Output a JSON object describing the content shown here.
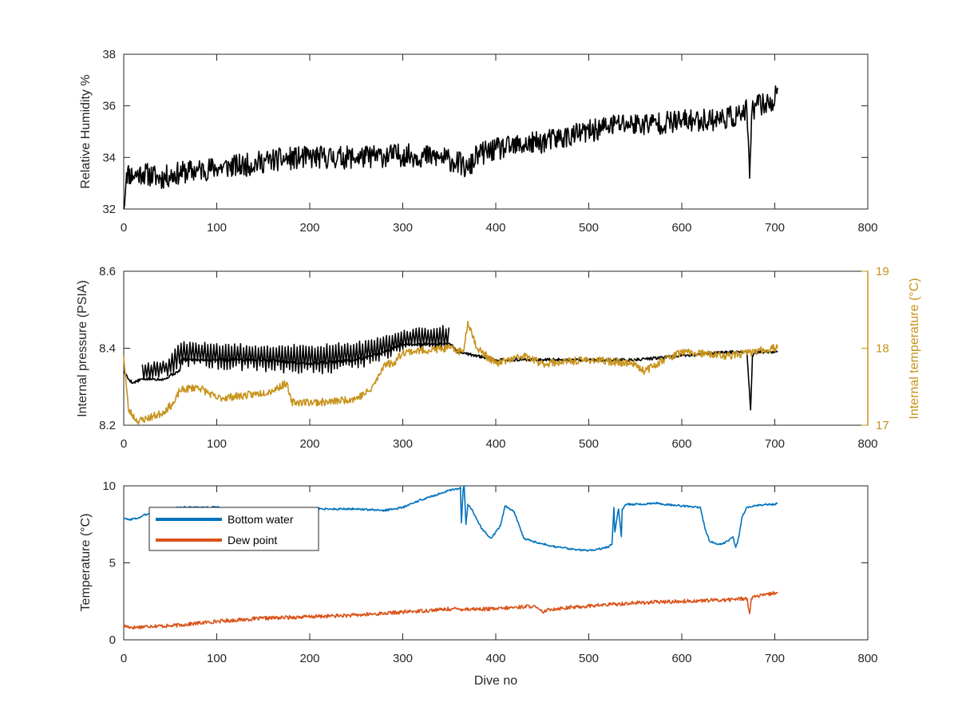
{
  "figure": {
    "xlabel": "Dive no"
  },
  "chart_data": [
    {
      "type": "line",
      "ylabel": "Relative Humidity %",
      "xlim": [
        0,
        800
      ],
      "ylim": [
        32,
        38
      ],
      "xticks": [
        0,
        100,
        200,
        300,
        400,
        500,
        600,
        700,
        800
      ],
      "yticks": [
        32,
        34,
        36,
        38
      ],
      "series": [
        {
          "color": "#000000",
          "noise": 0.45,
          "seed": 11,
          "x": [
            0,
            3,
            10,
            20,
            40,
            60,
            80,
            100,
            130,
            160,
            200,
            250,
            300,
            340,
            360,
            370,
            380,
            400,
            450,
            500,
            530,
            560,
            600,
            640,
            660,
            670,
            673,
            675,
            677,
            680,
            690,
            700,
            703
          ],
          "y": [
            32.0,
            33.4,
            33.3,
            33.4,
            33.2,
            33.4,
            33.5,
            33.6,
            33.7,
            33.9,
            34.0,
            34.0,
            34.1,
            34.0,
            33.8,
            33.5,
            34.1,
            34.3,
            34.6,
            35.0,
            35.3,
            35.3,
            35.4,
            35.5,
            35.6,
            35.8,
            33.2,
            35.6,
            35.9,
            36.0,
            36.1,
            36.2,
            36.7
          ]
        }
      ]
    },
    {
      "type": "line",
      "ylabel": "Internal pressure (PSIA)",
      "y2label": "Internal temperature (°C)",
      "xlim": [
        0,
        800
      ],
      "ylim": [
        8.2,
        8.6
      ],
      "y2lim": [
        17,
        19
      ],
      "xticks": [
        0,
        100,
        200,
        300,
        400,
        500,
        600,
        700,
        800
      ],
      "yticks": [
        8.2,
        8.4,
        8.6
      ],
      "y2ticks": [
        17,
        18,
        19
      ],
      "series": [
        {
          "axis": "left",
          "color": "#000000",
          "noise": 0.004,
          "seed": 5,
          "x": [
            0,
            5,
            10,
            20,
            45,
            50,
            60,
            62,
            100,
            150,
            200,
            250,
            280,
            300,
            352,
            355,
            360,
            380,
            400,
            450,
            500,
            550,
            600,
            650,
            670,
            674,
            676,
            678,
            700,
            703
          ],
          "y": [
            8.34,
            8.32,
            8.31,
            8.32,
            8.32,
            8.33,
            8.34,
            8.37,
            8.37,
            8.37,
            8.36,
            8.37,
            8.39,
            8.41,
            8.41,
            8.4,
            8.39,
            8.38,
            8.37,
            8.37,
            8.37,
            8.37,
            8.38,
            8.39,
            8.39,
            8.24,
            8.38,
            8.39,
            8.39,
            8.39
          ]
        },
        {
          "axis": "left",
          "color": "#000000",
          "noise": 0.0,
          "seed": 0,
          "oscillate": true,
          "x": [
            20,
            46,
            62,
            140,
            210,
            260,
            300,
            350
          ],
          "y": [
            8.36,
            8.37,
            8.42,
            8.41,
            8.41,
            8.42,
            8.45,
            8.46
          ],
          "ymin": [
            8.31,
            8.32,
            8.35,
            8.34,
            8.33,
            8.35,
            8.39,
            8.4
          ]
        },
        {
          "axis": "right",
          "color": "#c8931c",
          "noise": 0.05,
          "seed": 23,
          "x": [
            0,
            5,
            15,
            40,
            55,
            60,
            80,
            100,
            140,
            160,
            175,
            180,
            220,
            250,
            265,
            275,
            280,
            290,
            300,
            350,
            365,
            370,
            380,
            400,
            430,
            450,
            500,
            550,
            560,
            580,
            600,
            650,
            700,
            703
          ],
          "y": [
            17.9,
            17.2,
            17.05,
            17.15,
            17.3,
            17.45,
            17.5,
            17.35,
            17.4,
            17.45,
            17.55,
            17.3,
            17.3,
            17.35,
            17.45,
            17.65,
            17.8,
            17.8,
            17.95,
            18.0,
            17.95,
            18.35,
            18.0,
            17.8,
            17.9,
            17.8,
            17.85,
            17.8,
            17.7,
            17.85,
            17.95,
            17.9,
            18.0,
            18.0
          ]
        }
      ]
    },
    {
      "type": "line",
      "ylabel": "Temperature (°C)",
      "xlabel": "Dive no",
      "xlim": [
        0,
        800
      ],
      "ylim": [
        0,
        10
      ],
      "xticks": [
        0,
        100,
        200,
        300,
        400,
        500,
        600,
        700,
        800
      ],
      "yticks": [
        0,
        5,
        10
      ],
      "legend": "top-left",
      "series": [
        {
          "name": "Bottom water",
          "color": "#0072bd",
          "noise": 0.06,
          "seed": 3,
          "x": [
            0,
            5,
            15,
            30,
            60,
            100,
            150,
            200,
            250,
            280,
            300,
            320,
            340,
            350,
            360,
            362,
            363,
            365,
            366,
            368,
            370,
            375,
            385,
            395,
            405,
            410,
            420,
            430,
            440,
            460,
            480,
            500,
            520,
            525,
            527,
            528,
            532,
            535,
            536,
            540,
            560,
            570,
            580,
            600,
            620,
            625,
            630,
            640,
            650,
            655,
            658,
            660,
            665,
            670,
            680,
            690,
            700,
            703
          ],
          "y": [
            7.9,
            7.8,
            7.9,
            8.3,
            8.6,
            8.6,
            8.4,
            8.5,
            8.5,
            8.4,
            8.6,
            9.1,
            9.5,
            9.7,
            9.8,
            9.9,
            7.6,
            9.8,
            10.0,
            7.5,
            8.8,
            8.4,
            7.2,
            6.6,
            7.4,
            8.7,
            8.3,
            6.6,
            6.4,
            6.1,
            5.9,
            5.8,
            6.0,
            6.2,
            8.6,
            7.0,
            8.5,
            6.7,
            8.5,
            8.8,
            8.8,
            8.9,
            8.8,
            8.7,
            8.6,
            7.2,
            6.4,
            6.2,
            6.4,
            6.7,
            6.0,
            6.3,
            8.0,
            8.6,
            8.7,
            8.8,
            8.8,
            8.9
          ]
        },
        {
          "name": "Dew point",
          "color": "#d95319",
          "noise": 0.12,
          "seed": 17,
          "x": [
            0,
            10,
            30,
            50,
            100,
            150,
            200,
            250,
            300,
            350,
            400,
            440,
            450,
            460,
            500,
            550,
            600,
            650,
            670,
            673,
            675,
            677,
            690,
            703
          ],
          "y": [
            0.9,
            0.8,
            0.9,
            0.9,
            1.2,
            1.4,
            1.5,
            1.6,
            1.8,
            2.0,
            2.0,
            2.2,
            1.8,
            2.0,
            2.2,
            2.4,
            2.5,
            2.6,
            2.7,
            1.7,
            2.7,
            2.8,
            2.9,
            3.1
          ]
        }
      ]
    }
  ]
}
